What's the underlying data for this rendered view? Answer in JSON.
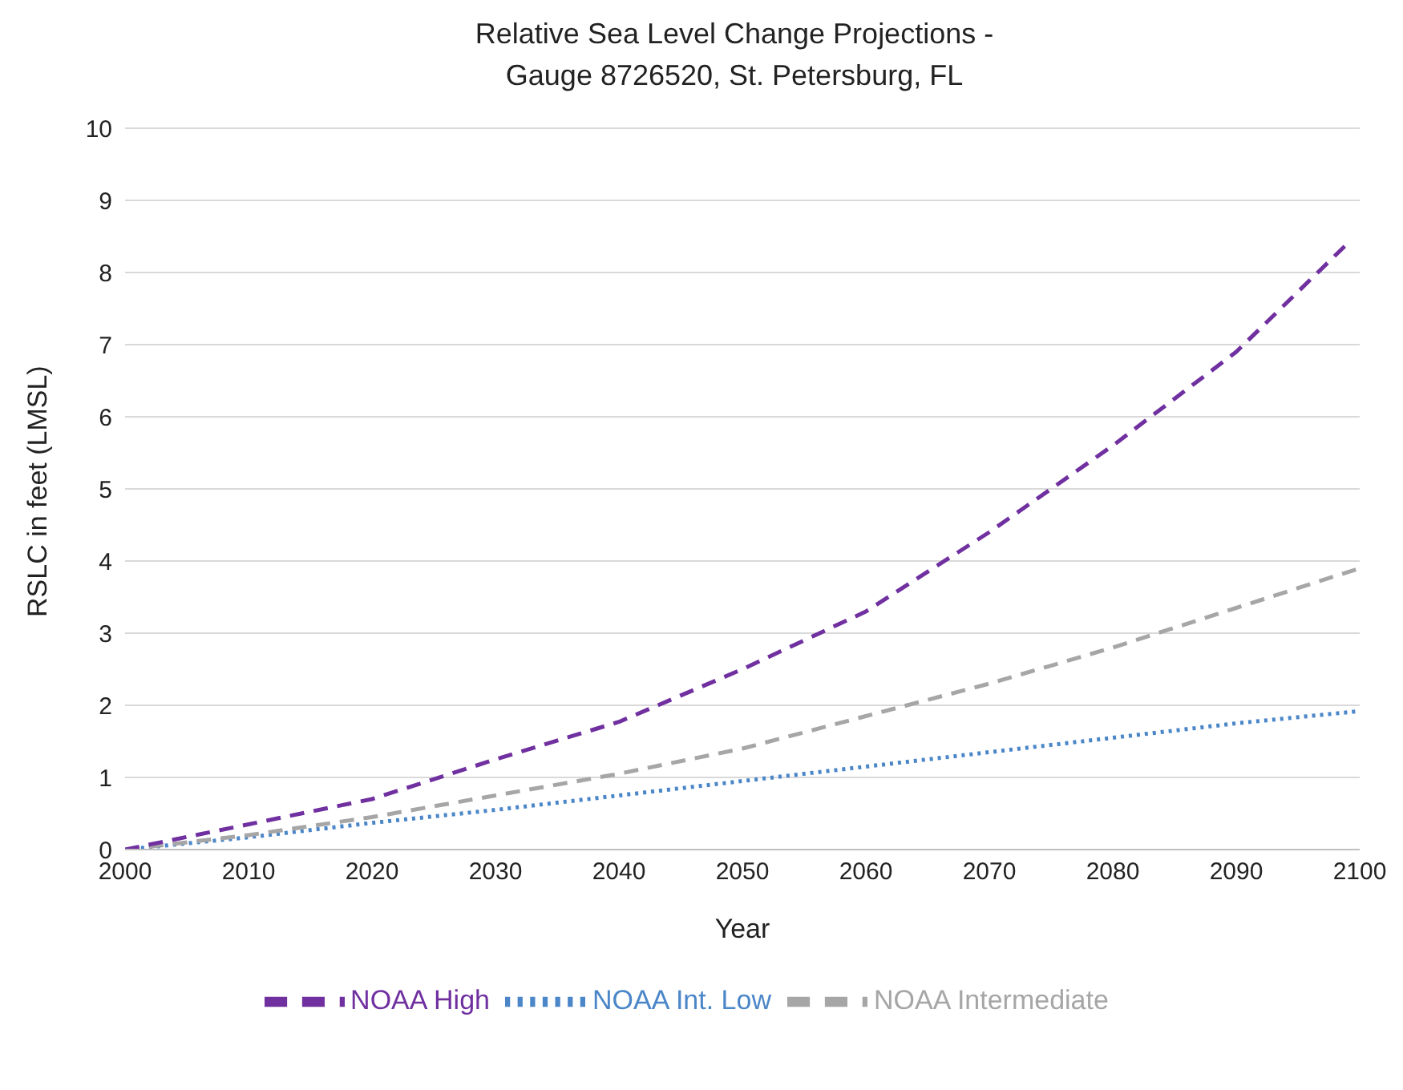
{
  "chart_data": {
    "type": "line",
    "title": "Relative Sea Level Change Projections -\nGauge 8726520, St. Petersburg, FL",
    "xlabel": "Year",
    "ylabel": "RSLC in feet (LMSL)",
    "x": [
      2000,
      2010,
      2020,
      2030,
      2040,
      2050,
      2060,
      2070,
      2080,
      2090,
      2100
    ],
    "series": [
      {
        "name": "NOAA Int. Low",
        "color": "#4a86c8",
        "line_style": "dotted",
        "values": [
          0,
          0.17,
          0.37,
          0.55,
          0.75,
          0.95,
          1.15,
          1.35,
          1.55,
          1.75,
          1.92
        ]
      },
      {
        "name": "NOAA Intermediate",
        "color": "#a6a6a6",
        "line_style": "dashed",
        "values": [
          0,
          0.2,
          0.45,
          0.75,
          1.05,
          1.4,
          1.85,
          2.3,
          2.8,
          3.35,
          3.9
        ]
      },
      {
        "name": "NOAA High",
        "color": "#7030a0",
        "line_style": "dashed",
        "x": [
          2000,
          2010,
          2020,
          2030,
          2040,
          2050,
          2060,
          2070,
          2080,
          2090,
          2099
        ],
        "values": [
          0,
          0.35,
          0.7,
          1.25,
          1.77,
          2.5,
          3.3,
          4.4,
          5.6,
          6.9,
          8.4
        ]
      }
    ],
    "xlim": [
      2000,
      2100
    ],
    "xticks": [
      2000,
      2010,
      2020,
      2030,
      2040,
      2050,
      2060,
      2070,
      2080,
      2090,
      2100
    ],
    "ylim": [
      0,
      10
    ],
    "yticks": [
      0,
      1,
      2,
      3,
      4,
      5,
      6,
      7,
      8,
      9,
      10
    ],
    "grid": "y",
    "legend": "bottom",
    "marker": "none"
  }
}
